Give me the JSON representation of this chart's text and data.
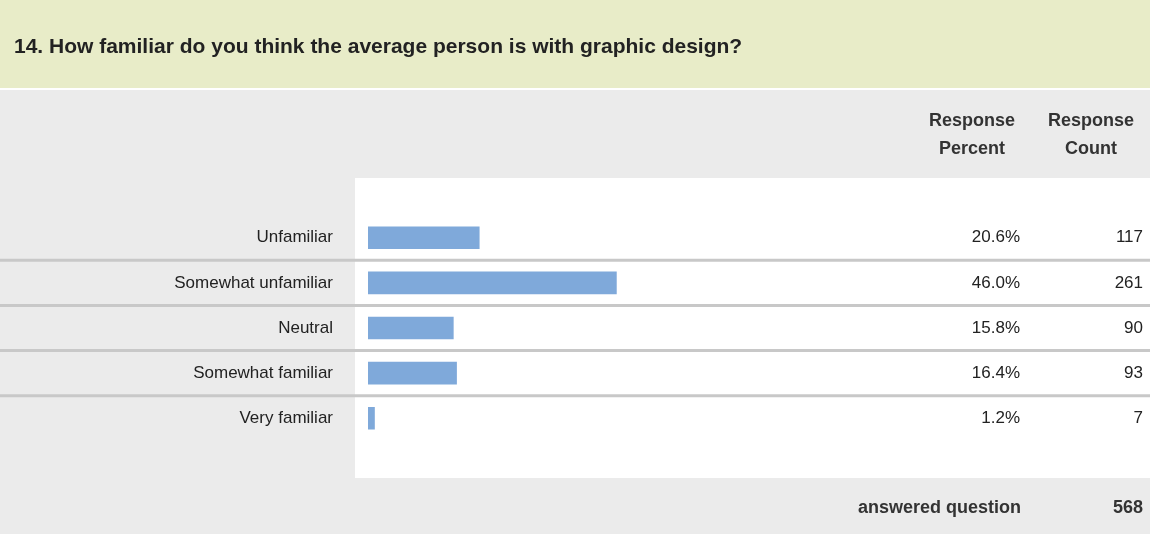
{
  "chart_data": {
    "type": "bar",
    "orientation": "horizontal",
    "title": "14. How familiar do you think the average person is with graphic design?",
    "categories": [
      "Unfamiliar",
      "Somewhat unfamiliar",
      "Neutral",
      "Somewhat familiar",
      "Very familiar"
    ],
    "values": [
      20.6,
      46.0,
      15.8,
      16.4,
      1.2
    ],
    "value_labels": [
      "20.6%",
      "46.0%",
      "15.8%",
      "16.4%",
      "1.2%"
    ],
    "color": "#7fa9da",
    "tick_labels": "y",
    "annotations": [
      "Response Percent",
      "Response Count",
      "117",
      "261",
      "90",
      "93",
      "7",
      "answered question",
      "568"
    ]
  }
}
